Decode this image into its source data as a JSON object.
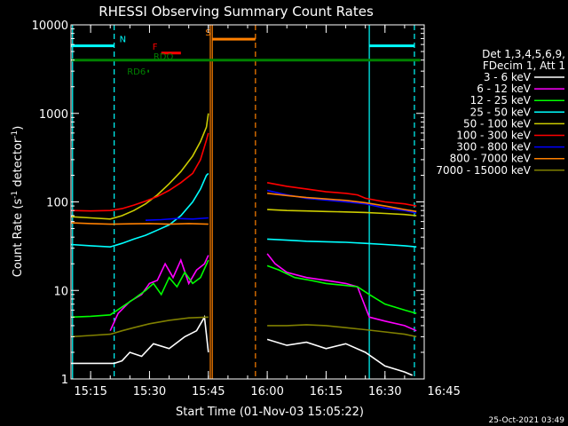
{
  "chart_data": {
    "type": "line",
    "title": "RHESSI Observing Summary Count Rates",
    "xlabel": "Start Time (01-Nov-03 15:05:22)",
    "ylabel_main": "Count Rate (s",
    "ylabel_sup1": "-1",
    "ylabel_mid": " detector",
    "ylabel_sup2": "-1",
    "ylabel_end": ")",
    "yscale": "log",
    "ylim": [
      1,
      10000
    ],
    "xlim_minutes": [
      15.0,
      105.0
    ],
    "x_ticks": [
      {
        "t": 20,
        "label": "15:15"
      },
      {
        "t": 35,
        "label": "15:30"
      },
      {
        "t": 50,
        "label": "15:45"
      },
      {
        "t": 65,
        "label": "16:00"
      },
      {
        "t": 80,
        "label": "16:15"
      },
      {
        "t": 95,
        "label": "16:30"
      },
      {
        "t": 110,
        "label": "16:45"
      }
    ],
    "y_ticks": [
      {
        "v": 1,
        "label": "1"
      },
      {
        "v": 10,
        "label": "10"
      },
      {
        "v": 100,
        "label": "100"
      },
      {
        "v": 1000,
        "label": "1000"
      },
      {
        "v": 10000,
        "label": "10000"
      }
    ],
    "legend": {
      "placement": "right",
      "header": [
        "Det 1,3,4,5,6,9,",
        "FDecim 1, Att 1"
      ],
      "entries": [
        {
          "label": "3 - 6 keV",
          "color": "#ffffff"
        },
        {
          "label": "6 - 12 keV",
          "color": "#ff00ff"
        },
        {
          "label": "12 - 25 keV",
          "color": "#00ff00"
        },
        {
          "label": "25 - 50 keV",
          "color": "#00ffff"
        },
        {
          "label": "50 - 100 keV",
          "color": "#cccc00"
        },
        {
          "label": "100 - 300 keV",
          "color": "#ff0000"
        },
        {
          "label": "300 - 800 keV",
          "color": "#0000ff"
        },
        {
          "label": "800 - 7000 keV",
          "color": "#ff8000"
        },
        {
          "label": "7000 - 15000 keV",
          "color": "#808000"
        }
      ]
    },
    "flags": [
      {
        "label": "N",
        "color": "#00ffff",
        "segments": [
          [
            15.0,
            26.0
          ],
          [
            91.0,
            102.5
          ]
        ],
        "level": 5800
      },
      {
        "label": "S",
        "color": "#ff8000",
        "segments": [
          [
            51.0,
            62.0
          ]
        ],
        "level": 6900
      },
      {
        "label": "F",
        "color": "#ff0000",
        "segments": [
          [
            38.0,
            43.0
          ]
        ],
        "level": 4800
      },
      {
        "label": "RDO",
        "color": "#008000",
        "segments": [
          [
            15.0,
            104.0
          ]
        ],
        "level": 4000
      },
      {
        "label": "RD6",
        "color": "#008000",
        "segments": [
          [
            34.5,
            34.9
          ]
        ],
        "level": 3000
      }
    ],
    "vlines": [
      {
        "t": 15.4,
        "color": "#00ffff",
        "style": "solid"
      },
      {
        "t": 26.0,
        "color": "#00ffff",
        "style": "dashed"
      },
      {
        "t": 91.0,
        "color": "#00ffff",
        "style": "solid"
      },
      {
        "t": 102.5,
        "color": "#00ffff",
        "style": "dashed"
      },
      {
        "t": 50.5,
        "color": "#ff8000",
        "style": "solid"
      },
      {
        "t": 51.0,
        "color": "#ff8000",
        "style": "solid"
      },
      {
        "t": 62.0,
        "color": "#ff8000",
        "style": "dashed"
      }
    ],
    "series": [
      {
        "name": "3 - 6 keV",
        "color": "#ffffff",
        "segments": [
          [
            [
              15.0,
              1.5
            ],
            [
              26.0,
              1.5
            ],
            [
              28.0,
              1.6
            ],
            [
              30.0,
              2.0
            ],
            [
              33.0,
              1.8
            ],
            [
              36.0,
              2.5
            ],
            [
              40.0,
              2.2
            ],
            [
              44.0,
              3.0
            ],
            [
              47.0,
              3.5
            ],
            [
              49.0,
              5.0
            ],
            [
              50.0,
              2.0
            ]
          ],
          [
            [
              65.0,
              2.8
            ],
            [
              70.0,
              2.4
            ],
            [
              75.0,
              2.6
            ],
            [
              80.0,
              2.2
            ],
            [
              85.0,
              2.5
            ],
            [
              90.0,
              2.0
            ],
            [
              95.0,
              1.4
            ],
            [
              100.0,
              1.2
            ],
            [
              102.0,
              1.1
            ]
          ]
        ]
      },
      {
        "name": "6 - 12 keV",
        "color": "#ff00ff",
        "segments": [
          [
            [
              25.0,
              3.5
            ],
            [
              27.0,
              5.5
            ],
            [
              30.0,
              7.5
            ],
            [
              33.0,
              9.0
            ],
            [
              35.0,
              12.0
            ],
            [
              37.0,
              13.0
            ],
            [
              39.0,
              20.0
            ],
            [
              41.0,
              14.0
            ],
            [
              43.0,
              22.0
            ],
            [
              45.0,
              12.0
            ],
            [
              47.0,
              17.0
            ],
            [
              49.0,
              20.0
            ],
            [
              50.0,
              25.0
            ]
          ],
          [
            [
              65.0,
              26.0
            ],
            [
              67.0,
              20.0
            ],
            [
              70.0,
              16.0
            ],
            [
              75.0,
              14.0
            ],
            [
              80.0,
              13.0
            ],
            [
              85.0,
              12.0
            ],
            [
              88.0,
              11.0
            ],
            [
              91.0,
              5.0
            ],
            [
              95.0,
              4.5
            ],
            [
              100.0,
              4.0
            ],
            [
              103.0,
              3.5
            ]
          ]
        ]
      },
      {
        "name": "12 - 25 keV",
        "color": "#00ff00",
        "segments": [
          [
            [
              15.0,
              5.0
            ],
            [
              20.0,
              5.1
            ],
            [
              25.0,
              5.3
            ],
            [
              28.0,
              6.5
            ],
            [
              31.0,
              8.0
            ],
            [
              34.0,
              10.0
            ],
            [
              36.0,
              12.0
            ],
            [
              38.0,
              9.0
            ],
            [
              40.0,
              14.0
            ],
            [
              42.0,
              11.0
            ],
            [
              44.0,
              16.0
            ],
            [
              46.0,
              12.0
            ],
            [
              48.0,
              14.0
            ],
            [
              50.0,
              22.0
            ]
          ],
          [
            [
              65.0,
              19.0
            ],
            [
              68.0,
              17.0
            ],
            [
              72.0,
              14.0
            ],
            [
              76.0,
              13.0
            ],
            [
              80.0,
              12.0
            ],
            [
              84.0,
              11.5
            ],
            [
              88.0,
              11.0
            ],
            [
              91.0,
              9.0
            ],
            [
              95.0,
              7.0
            ],
            [
              100.0,
              6.0
            ],
            [
              103.0,
              5.5
            ]
          ]
        ]
      },
      {
        "name": "25 - 50 keV",
        "color": "#00ffff",
        "segments": [
          [
            [
              15.0,
              33.0
            ],
            [
              20.0,
              32.0
            ],
            [
              25.0,
              31.0
            ],
            [
              28.0,
              34.0
            ],
            [
              31.0,
              38.0
            ],
            [
              34.0,
              42.0
            ],
            [
              37.0,
              48.0
            ],
            [
              40.0,
              55.0
            ],
            [
              43.0,
              70.0
            ],
            [
              46.0,
              100.0
            ],
            [
              48.0,
              140.0
            ],
            [
              49.5,
              200.0
            ],
            [
              50.0,
              210.0
            ]
          ],
          [
            [
              65.0,
              38.0
            ],
            [
              70.0,
              37.0
            ],
            [
              75.0,
              36.0
            ],
            [
              80.0,
              35.5
            ],
            [
              85.0,
              35.0
            ],
            [
              90.0,
              34.0
            ],
            [
              95.0,
              33.0
            ],
            [
              100.0,
              32.0
            ],
            [
              103.0,
              31.0
            ]
          ]
        ]
      },
      {
        "name": "50 - 100 keV",
        "color": "#cccc00",
        "segments": [
          [
            [
              15.0,
              68.0
            ],
            [
              20.0,
              66.0
            ],
            [
              25.0,
              64.0
            ],
            [
              28.0,
              70.0
            ],
            [
              31.0,
              80.0
            ],
            [
              34.0,
              95.0
            ],
            [
              37.0,
              120.0
            ],
            [
              40.0,
              160.0
            ],
            [
              43.0,
              220.0
            ],
            [
              46.0,
              330.0
            ],
            [
              48.0,
              480.0
            ],
            [
              49.5,
              700.0
            ],
            [
              50.0,
              1000.0
            ]
          ],
          [
            [
              65.0,
              82.0
            ],
            [
              70.0,
              80.0
            ],
            [
              75.0,
              79.0
            ],
            [
              80.0,
              78.0
            ],
            [
              85.0,
              77.0
            ],
            [
              90.0,
              76.0
            ],
            [
              95.0,
              74.0
            ],
            [
              100.0,
              72.0
            ],
            [
              103.0,
              70.0
            ]
          ]
        ]
      },
      {
        "name": "100 - 300 keV",
        "color": "#ff0000",
        "segments": [
          [
            [
              15.0,
              80.0
            ],
            [
              20.0,
              79.0
            ],
            [
              25.0,
              80.0
            ],
            [
              28.0,
              84.0
            ],
            [
              31.0,
              92.0
            ],
            [
              34.0,
              102.0
            ],
            [
              37.0,
              115.0
            ],
            [
              40.0,
              135.0
            ],
            [
              43.0,
              165.0
            ],
            [
              46.0,
              210.0
            ],
            [
              48.0,
              300.0
            ],
            [
              49.5,
              500.0
            ],
            [
              50.0,
              600.0
            ]
          ],
          [
            [
              65.0,
              165.0
            ],
            [
              70.0,
              150.0
            ],
            [
              75.0,
              140.0
            ],
            [
              80.0,
              130.0
            ],
            [
              85.0,
              125.0
            ],
            [
              88.0,
              120.0
            ],
            [
              90.0,
              110.0
            ],
            [
              95.0,
              100.0
            ],
            [
              100.0,
              95.0
            ],
            [
              103.0,
              90.0
            ]
          ]
        ]
      },
      {
        "name": "300 - 800 keV",
        "color": "#0000ff",
        "segments": [
          [
            [
              34.0,
              62.0
            ],
            [
              38.0,
              63.0
            ],
            [
              42.0,
              65.0
            ],
            [
              46.0,
              64.0
            ],
            [
              50.0,
              66.0
            ]
          ],
          [
            [
              65.0,
              135.0
            ],
            [
              70.0,
              120.0
            ],
            [
              75.0,
              110.0
            ],
            [
              80.0,
              105.0
            ],
            [
              85.0,
              100.0
            ],
            [
              90.0,
              95.0
            ],
            [
              95.0,
              85.0
            ],
            [
              100.0,
              80.0
            ],
            [
              103.0,
              75.0
            ]
          ]
        ]
      },
      {
        "name": "800 - 7000 keV",
        "color": "#ff8000",
        "segments": [
          [
            [
              15.0,
              58.0
            ],
            [
              20.0,
              57.0
            ],
            [
              25.0,
              56.0
            ],
            [
              30.0,
              56.5
            ],
            [
              35.0,
              57.0
            ],
            [
              40.0,
              56.0
            ],
            [
              45.0,
              57.0
            ],
            [
              50.0,
              56.0
            ]
          ],
          [
            [
              65.0,
              125.0
            ],
            [
              70.0,
              118.0
            ],
            [
              75.0,
              112.0
            ],
            [
              80.0,
              108.0
            ],
            [
              85.0,
              104.0
            ],
            [
              90.0,
              98.0
            ],
            [
              95.0,
              90.0
            ],
            [
              100.0,
              82.0
            ],
            [
              103.0,
              78.0
            ]
          ]
        ]
      },
      {
        "name": "7000 - 15000 keV",
        "color": "#808000",
        "segments": [
          [
            [
              15.0,
              3.0
            ],
            [
              20.0,
              3.1
            ],
            [
              25.0,
              3.2
            ],
            [
              28.0,
              3.5
            ],
            [
              31.0,
              3.8
            ],
            [
              35.0,
              4.2
            ],
            [
              40.0,
              4.6
            ],
            [
              45.0,
              4.9
            ],
            [
              50.0,
              5.0
            ]
          ],
          [
            [
              65.0,
              4.0
            ],
            [
              70.0,
              4.0
            ],
            [
              75.0,
              4.1
            ],
            [
              80.0,
              4.0
            ],
            [
              85.0,
              3.8
            ],
            [
              90.0,
              3.6
            ],
            [
              95.0,
              3.4
            ],
            [
              100.0,
              3.2
            ],
            [
              103.0,
              3.0
            ]
          ]
        ]
      }
    ]
  },
  "footer_date": "25-Oct-2021 03:49"
}
